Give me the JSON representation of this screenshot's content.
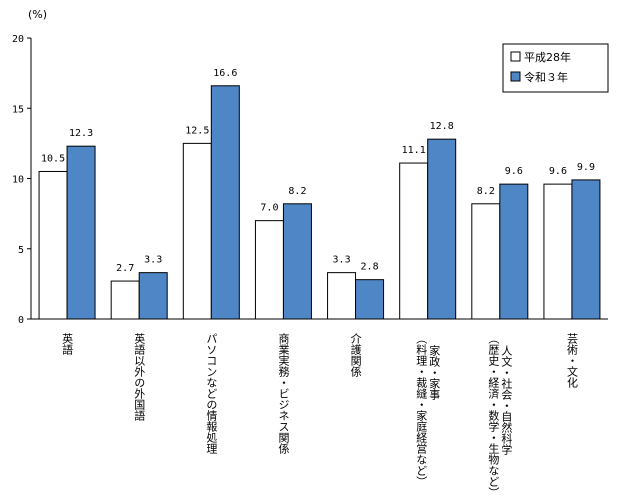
{
  "chart_data": {
    "type": "bar",
    "unit_label": "(%)",
    "ylim": [
      0,
      20
    ],
    "yticks": [
      0,
      5,
      10,
      15,
      20
    ],
    "grid": false,
    "legend_position": "top-right",
    "categories": [
      [
        "英語"
      ],
      [
        "英語以外の外国語"
      ],
      [
        "パソコンなどの情報処理"
      ],
      [
        "商業実務・ビジネス関係"
      ],
      [
        "介護関係"
      ],
      [
        "家政・家事",
        "（料理・裁縫・家庭経営など）"
      ],
      [
        "人文・社会・自然科学",
        "（歴史・経済・数学・生物など）"
      ],
      [
        "芸術・文化"
      ]
    ],
    "series": [
      {
        "name": "平成28年",
        "color": "#ffffff",
        "values": [
          10.5,
          2.7,
          12.5,
          7.0,
          3.3,
          11.1,
          8.2,
          9.6
        ],
        "labels": [
          "10.5",
          "2.7",
          "12.5",
          "7.0",
          "3.3",
          "11.1",
          "8.2",
          "9.6"
        ]
      },
      {
        "name": "令和３年",
        "color": "#4f86c6",
        "values": [
          12.3,
          3.3,
          16.6,
          8.2,
          2.8,
          12.8,
          9.6,
          9.9
        ],
        "labels": [
          "12.3",
          "3.3",
          "16.6",
          "8.2",
          "2.8",
          "12.8",
          "9.6",
          "9.9"
        ]
      }
    ]
  }
}
